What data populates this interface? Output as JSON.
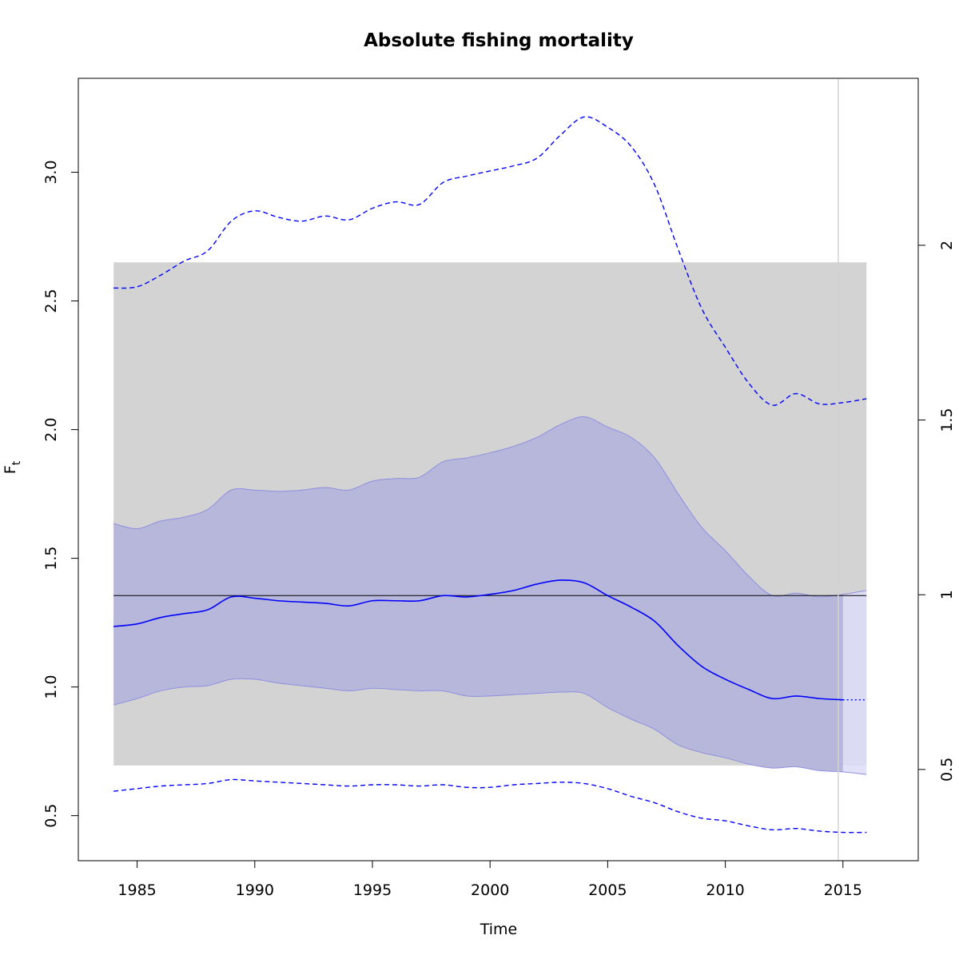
{
  "chart_data": {
    "type": "line",
    "title": "Absolute fishing mortality",
    "xlabel": "Time",
    "ylabel_main": "F",
    "ylabel_sub": "t",
    "xlim": [
      1982.5,
      2018.2
    ],
    "ylim": [
      0.325,
      3.365
    ],
    "ylim_right": [
      0.2389,
      2.4778
    ],
    "xticks": [
      1985,
      1990,
      1995,
      2000,
      2005,
      2010,
      2015
    ],
    "yticks": [
      0.5,
      1.0,
      1.5,
      2.0,
      2.5,
      3.0
    ],
    "ytick_labels": [
      "0.5",
      "1.0",
      "1.5",
      "2.0",
      "2.5",
      "3.0"
    ],
    "yticks_right": [
      0.5,
      1,
      1.5,
      2
    ],
    "ytick_labels_right": [
      "0.5",
      "1",
      "1.5",
      "2"
    ],
    "grey_band": {
      "x": [
        1984,
        2016
      ],
      "y": [
        0.695,
        2.65
      ],
      "color": "#d3d3d3"
    },
    "reference_line_y": 1.355,
    "vertical_line_x": 2014.8,
    "colors": {
      "line": "#0000ff",
      "ci_fill": "#b7b7db",
      "ci_pred_fill": "#dcdcf8",
      "band": "#d3d3d3",
      "vline": "#d3d3d3"
    },
    "series": [
      {
        "role": "estimate",
        "style": "solid",
        "x": [
          1984,
          1985,
          1986,
          1987,
          1988,
          1989,
          1990,
          1991,
          1992,
          1993,
          1994,
          1995,
          1996,
          1997,
          1998,
          1999,
          2000,
          2001,
          2002,
          2003,
          2004,
          2005,
          2006,
          2007,
          2008,
          2009,
          2010,
          2011,
          2012,
          2013,
          2014,
          2015
        ],
        "values": [
          1.235,
          1.245,
          1.27,
          1.285,
          1.3,
          1.35,
          1.345,
          1.335,
          1.33,
          1.325,
          1.315,
          1.335,
          1.335,
          1.335,
          1.355,
          1.35,
          1.36,
          1.375,
          1.4,
          1.415,
          1.405,
          1.355,
          1.31,
          1.255,
          1.16,
          1.08,
          1.03,
          0.99,
          0.955,
          0.965,
          0.955,
          0.95
        ]
      },
      {
        "role": "estimate-prediction",
        "style": "dotted",
        "x": [
          2015,
          2016
        ],
        "values": [
          0.95,
          0.95
        ]
      },
      {
        "role": "ci-upper",
        "style": "filled",
        "x": [
          1984,
          1985,
          1986,
          1987,
          1988,
          1989,
          1990,
          1991,
          1992,
          1993,
          1994,
          1995,
          1996,
          1997,
          1998,
          1999,
          2000,
          2001,
          2002,
          2003,
          2004,
          2005,
          2006,
          2007,
          2008,
          2009,
          2010,
          2011,
          2012,
          2013,
          2014,
          2015,
          2016
        ],
        "values": [
          1.635,
          1.615,
          1.645,
          1.66,
          1.69,
          1.765,
          1.765,
          1.76,
          1.765,
          1.775,
          1.765,
          1.8,
          1.81,
          1.815,
          1.875,
          1.89,
          1.91,
          1.935,
          1.97,
          2.02,
          2.05,
          2.01,
          1.97,
          1.89,
          1.75,
          1.62,
          1.53,
          1.43,
          1.355,
          1.365,
          1.35,
          1.36,
          1.375
        ]
      },
      {
        "role": "ci-lower",
        "style": "filled",
        "x": [
          1984,
          1985,
          1986,
          1987,
          1988,
          1989,
          1990,
          1991,
          1992,
          1993,
          1994,
          1995,
          1996,
          1997,
          1998,
          1999,
          2000,
          2001,
          2002,
          2003,
          2004,
          2005,
          2006,
          2007,
          2008,
          2009,
          2010,
          2011,
          2012,
          2013,
          2014,
          2015,
          2016
        ],
        "values": [
          0.93,
          0.955,
          0.985,
          1.0,
          1.005,
          1.03,
          1.03,
          1.015,
          1.005,
          0.995,
          0.985,
          0.995,
          0.99,
          0.985,
          0.985,
          0.965,
          0.965,
          0.97,
          0.975,
          0.98,
          0.975,
          0.92,
          0.875,
          0.835,
          0.775,
          0.745,
          0.725,
          0.7,
          0.685,
          0.69,
          0.675,
          0.67,
          0.66
        ]
      },
      {
        "role": "catch-upper",
        "style": "dashed",
        "x": [
          1984,
          1985,
          1986,
          1987,
          1988,
          1989,
          1990,
          1991,
          1992,
          1993,
          1994,
          1995,
          1996,
          1997,
          1998,
          1999,
          2000,
          2001,
          2002,
          2003,
          2004,
          2005,
          2006,
          2007,
          2008,
          2009,
          2010,
          2011,
          2012,
          2013,
          2014,
          2015,
          2016
        ],
        "values": [
          2.55,
          2.555,
          2.6,
          2.655,
          2.695,
          2.81,
          2.85,
          2.825,
          2.81,
          2.83,
          2.815,
          2.86,
          2.885,
          2.875,
          2.96,
          2.985,
          3.005,
          3.025,
          3.055,
          3.145,
          3.215,
          3.175,
          3.1,
          2.95,
          2.7,
          2.47,
          2.32,
          2.18,
          2.095,
          2.14,
          2.1,
          2.105,
          2.12
        ]
      },
      {
        "role": "catch-lower",
        "style": "dashed",
        "x": [
          1984,
          1985,
          1986,
          1987,
          1988,
          1989,
          1990,
          1991,
          1992,
          1993,
          1994,
          1995,
          1996,
          1997,
          1998,
          1999,
          2000,
          2001,
          2002,
          2003,
          2004,
          2005,
          2006,
          2007,
          2008,
          2009,
          2010,
          2011,
          2012,
          2013,
          2014,
          2015,
          2016
        ],
        "values": [
          0.595,
          0.605,
          0.615,
          0.62,
          0.625,
          0.64,
          0.635,
          0.63,
          0.625,
          0.62,
          0.615,
          0.62,
          0.62,
          0.615,
          0.62,
          0.61,
          0.61,
          0.62,
          0.625,
          0.63,
          0.625,
          0.605,
          0.575,
          0.55,
          0.515,
          0.49,
          0.48,
          0.46,
          0.445,
          0.45,
          0.44,
          0.435,
          0.435
        ]
      }
    ]
  }
}
